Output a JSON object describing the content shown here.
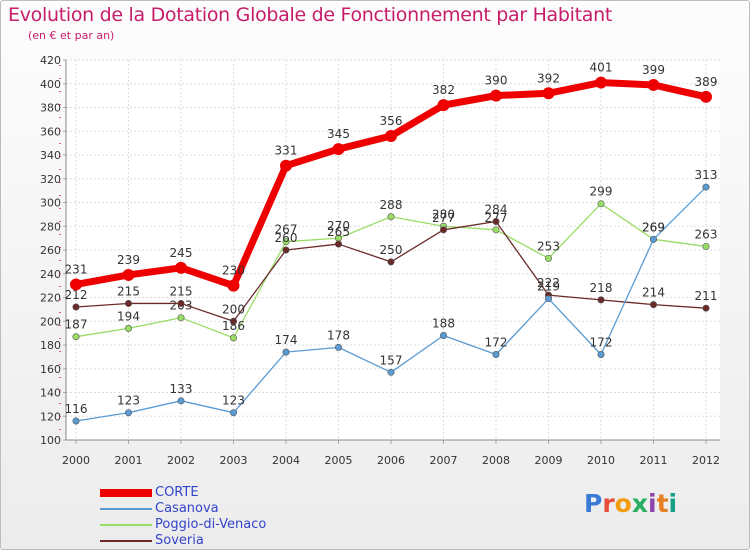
{
  "chart_data": {
    "type": "line",
    "title": "Evolution de la Dotation Globale de Fonctionnement par Habitant",
    "subtitle": "(en € et par an)",
    "xlabel": "",
    "ylabel": "",
    "x": [
      "2000",
      "2001",
      "2002",
      "2003",
      "2004",
      "2005",
      "2006",
      "2007",
      "2008",
      "2009",
      "2010",
      "2011",
      "2012"
    ],
    "ylim": [
      100,
      420
    ],
    "yticks": [
      100,
      120,
      140,
      160,
      180,
      200,
      220,
      240,
      260,
      280,
      300,
      320,
      340,
      360,
      380,
      400,
      420
    ],
    "grid": true,
    "legend_position": "bottom-left",
    "series": [
      {
        "name": "CORTE",
        "color": "#ee0000",
        "values": [
          231,
          239,
          245,
          230,
          331,
          345,
          356,
          382,
          390,
          392,
          401,
          399,
          389
        ]
      },
      {
        "name": "Casanova",
        "color": "#5a9bd4",
        "values": [
          116,
          123,
          133,
          123,
          174,
          178,
          157,
          188,
          172,
          219,
          172,
          269,
          313
        ]
      },
      {
        "name": "Poggio-di-Venaco",
        "color": "#99dd66",
        "values": [
          187,
          194,
          203,
          186,
          267,
          270,
          288,
          280,
          277,
          253,
          299,
          269,
          263
        ]
      },
      {
        "name": "Soveria",
        "color": "#6b2a2a",
        "values": [
          212,
          215,
          215,
          200,
          260,
          265,
          250,
          277,
          284,
          222,
          218,
          214,
          211
        ]
      }
    ]
  },
  "logo": {
    "letters": [
      {
        "ch": "P",
        "color": "#3a7bd5"
      },
      {
        "ch": "r",
        "color": "#e74c3c"
      },
      {
        "ch": "o",
        "color": "#f39c12"
      },
      {
        "ch": "x",
        "color": "#27ae60"
      },
      {
        "ch": "i",
        "color": "#8e44ad"
      },
      {
        "ch": "t",
        "color": "#e67e22"
      },
      {
        "ch": "i",
        "color": "#16a085"
      }
    ]
  }
}
